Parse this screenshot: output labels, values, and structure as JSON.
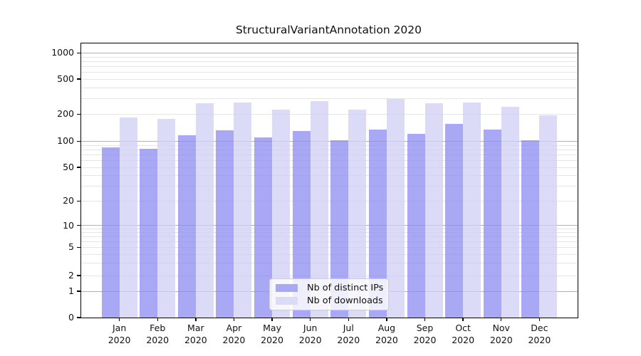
{
  "chart_data": {
    "type": "bar",
    "title": "StructuralVariantAnnotation 2020",
    "categories": [
      "Jan",
      "Feb",
      "Mar",
      "Apr",
      "May",
      "Jun",
      "Jul",
      "Aug",
      "Sep",
      "Oct",
      "Nov",
      "Dec"
    ],
    "category_year": "2020",
    "series": [
      {
        "name": "Nb of distinct IPs",
        "color": "#a8a8f4",
        "values": [
          85,
          82,
          117,
          133,
          110,
          131,
          102,
          136,
          120,
          157,
          135,
          102
        ]
      },
      {
        "name": "Nb of downloads",
        "color": "#dbdbf8",
        "values": [
          185,
          177,
          266,
          273,
          225,
          281,
          226,
          299,
          265,
          271,
          241,
          195
        ]
      }
    ],
    "xlabel": "",
    "ylabel": "",
    "yscale": "symlog",
    "y_ticks": [
      0,
      1,
      2,
      5,
      10,
      20,
      50,
      100,
      200,
      500,
      1000
    ],
    "ylim": [
      0,
      1250
    ],
    "grid": true,
    "legend_position": "lower center",
    "grid_major_color": "#b2b2b2",
    "grid_minor_color": "#e5e5e5"
  }
}
